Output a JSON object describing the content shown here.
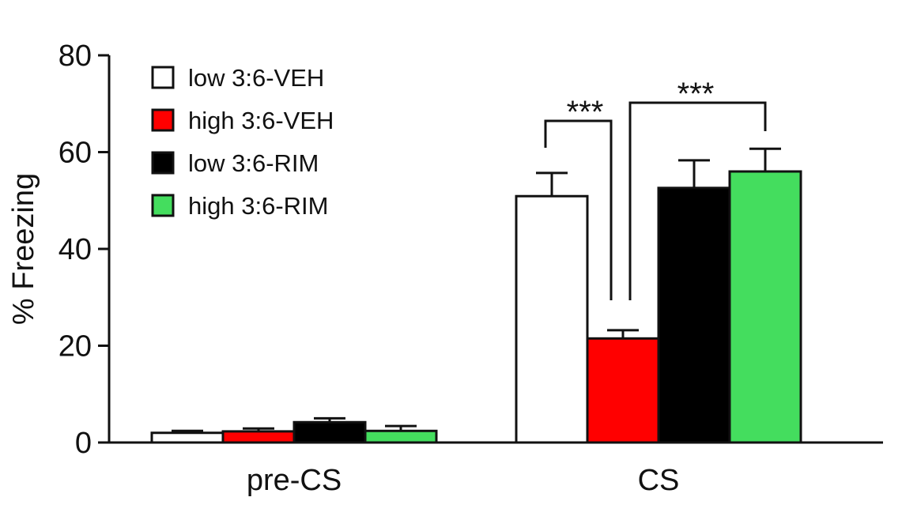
{
  "chart_data": {
    "type": "bar",
    "title": "",
    "xlabel": "",
    "ylabel": "% Freezing",
    "ylim": [
      0,
      80
    ],
    "yticks": [
      "0",
      "20",
      "40",
      "60",
      "80"
    ],
    "grid": false,
    "legend_position": "top-left",
    "categories": [
      "pre-CS",
      "CS"
    ],
    "series": [
      {
        "name": "low 3:6-VEH",
        "color": "#ffffff",
        "values": [
          2.0,
          50.9
        ],
        "error_upper": [
          2.4,
          55.7
        ]
      },
      {
        "name": "high 3:6-VEH",
        "color": "#ff0000",
        "values": [
          2.3,
          21.5
        ],
        "error_upper": [
          2.9,
          23.2
        ]
      },
      {
        "name": "low 3:6-RIM",
        "color": "#000000",
        "values": [
          4.2,
          52.6
        ],
        "error_upper": [
          5.0,
          58.3
        ]
      },
      {
        "name": "high 3:6-RIM",
        "color": "#44dd5e",
        "values": [
          2.4,
          56.0
        ],
        "error_upper": [
          3.4,
          60.7
        ]
      }
    ],
    "annotations": [
      {
        "text": "***",
        "between": [
          "low 3:6-VEH",
          "high 3:6-VEH"
        ],
        "category": "CS"
      },
      {
        "text": "***",
        "between": [
          "high 3:6-VEH",
          "high 3:6-RIM"
        ],
        "category": "CS"
      }
    ]
  }
}
